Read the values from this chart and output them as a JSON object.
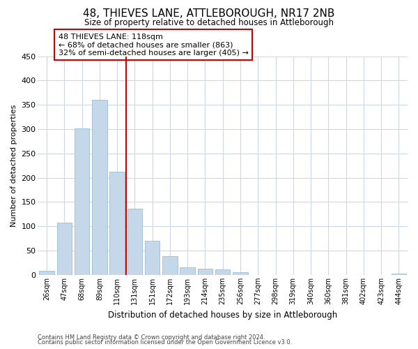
{
  "title": "48, THIEVES LANE, ATTLEBOROUGH, NR17 2NB",
  "subtitle": "Size of property relative to detached houses in Attleborough",
  "xlabel": "Distribution of detached houses by size in Attleborough",
  "ylabel": "Number of detached properties",
  "bar_labels": [
    "26sqm",
    "47sqm",
    "68sqm",
    "89sqm",
    "110sqm",
    "131sqm",
    "151sqm",
    "172sqm",
    "193sqm",
    "214sqm",
    "235sqm",
    "256sqm",
    "277sqm",
    "298sqm",
    "319sqm",
    "340sqm",
    "360sqm",
    "381sqm",
    "402sqm",
    "423sqm",
    "444sqm"
  ],
  "bar_values": [
    9,
    108,
    301,
    360,
    213,
    137,
    70,
    39,
    15,
    13,
    11,
    6,
    0,
    0,
    0,
    0,
    0,
    0,
    0,
    0,
    2
  ],
  "bar_color": "#c5d8ea",
  "bar_edge_color": "#9bbdd4",
  "vline_color": "#cc0000",
  "vline_pos": 4.5,
  "ylim": [
    0,
    450
  ],
  "yticks": [
    0,
    50,
    100,
    150,
    200,
    250,
    300,
    350,
    400,
    450
  ],
  "annotation_title": "48 THIEVES LANE: 118sqm",
  "annotation_line1": "← 68% of detached houses are smaller (863)",
  "annotation_line2": "32% of semi-detached houses are larger (405) →",
  "footer1": "Contains HM Land Registry data © Crown copyright and database right 2024.",
  "footer2": "Contains public sector information licensed under the Open Government Licence v3.0.",
  "background_color": "#ffffff",
  "grid_color": "#ccd8e8"
}
